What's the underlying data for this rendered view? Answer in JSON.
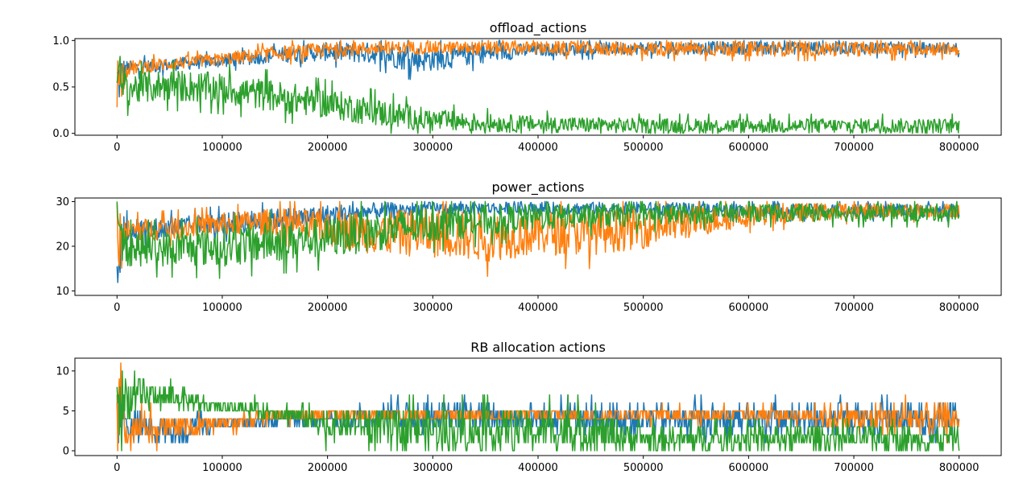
{
  "colors": {
    "series0": "#1f77b4",
    "series1": "#ff7f0e",
    "series2": "#2ca02c"
  },
  "chart_data": [
    {
      "type": "line",
      "title": "offload_actions",
      "xlabel": "",
      "ylabel": "",
      "xlim": [
        -40000,
        840000
      ],
      "ylim": [
        -0.02,
        1.02
      ],
      "xticks": [
        0,
        100000,
        200000,
        300000,
        400000,
        500000,
        600000,
        700000,
        800000
      ],
      "yticks": [
        0.0,
        0.5,
        1.0
      ],
      "ytick_labels": [
        "0.0",
        "0.5",
        "1.0"
      ],
      "grid": false,
      "series": [
        {
          "color": "#1f77b4",
          "x": [
            0,
            10000,
            50000,
            100000,
            150000,
            200000,
            250000,
            280000,
            300000,
            350000,
            400000,
            500000,
            600000,
            700000,
            800000
          ],
          "y_mean": [
            0.55,
            0.7,
            0.74,
            0.78,
            0.84,
            0.88,
            0.86,
            0.8,
            0.8,
            0.86,
            0.9,
            0.92,
            0.92,
            0.92,
            0.92
          ],
          "y_spread": [
            0.35,
            0.08,
            0.07,
            0.07,
            0.08,
            0.1,
            0.12,
            0.14,
            0.13,
            0.1,
            0.07,
            0.07,
            0.07,
            0.07,
            0.06
          ]
        },
        {
          "color": "#ff7f0e",
          "x": [
            0,
            10000,
            50000,
            100000,
            150000,
            200000,
            250000,
            300000,
            350000,
            400000,
            500000,
            600000,
            700000,
            800000
          ],
          "y_mean": [
            0.55,
            0.7,
            0.75,
            0.8,
            0.86,
            0.9,
            0.92,
            0.92,
            0.92,
            0.92,
            0.91,
            0.91,
            0.91,
            0.91
          ],
          "y_spread": [
            0.35,
            0.08,
            0.07,
            0.07,
            0.08,
            0.08,
            0.07,
            0.07,
            0.07,
            0.07,
            0.08,
            0.08,
            0.08,
            0.07
          ]
        },
        {
          "color": "#2ca02c",
          "x": [
            0,
            10000,
            50000,
            100000,
            150000,
            200000,
            250000,
            300000,
            350000,
            400000,
            500000,
            600000,
            700000,
            800000
          ],
          "y_mean": [
            0.5,
            0.48,
            0.52,
            0.48,
            0.4,
            0.32,
            0.22,
            0.14,
            0.11,
            0.1,
            0.08,
            0.08,
            0.08,
            0.08
          ],
          "y_spread": [
            0.45,
            0.18,
            0.17,
            0.17,
            0.17,
            0.16,
            0.15,
            0.12,
            0.1,
            0.09,
            0.08,
            0.08,
            0.08,
            0.08
          ]
        }
      ]
    },
    {
      "type": "line",
      "title": "power_actions",
      "xlabel": "",
      "ylabel": "",
      "xlim": [
        -40000,
        840000
      ],
      "ylim": [
        9.0,
        30.8
      ],
      "xticks": [
        0,
        100000,
        200000,
        300000,
        400000,
        500000,
        600000,
        700000,
        800000
      ],
      "yticks": [
        10,
        20,
        30
      ],
      "ytick_labels": [
        "10",
        "20",
        "30"
      ],
      "grid": false,
      "series": [
        {
          "color": "#1f77b4",
          "x": [
            0,
            10000,
            50000,
            100000,
            150000,
            200000,
            250000,
            300000,
            400000,
            500000,
            600000,
            700000,
            800000
          ],
          "y_mean": [
            20,
            23.5,
            24,
            25,
            26,
            27,
            28,
            28.5,
            28.5,
            28.5,
            28,
            28,
            28
          ],
          "y_spread": [
            10,
            2.5,
            2.5,
            2.5,
            2.5,
            2.3,
            1.8,
            1.4,
            1.4,
            1.4,
            1.5,
            1.5,
            1.5
          ]
        },
        {
          "color": "#ff7f0e",
          "x": [
            0,
            10000,
            50000,
            100000,
            150000,
            200000,
            250000,
            300000,
            350000,
            400000,
            450000,
            500000,
            550000,
            600000,
            700000,
            800000
          ],
          "y_mean": [
            20,
            23.5,
            24,
            25,
            25.5,
            24,
            23,
            23,
            22,
            23,
            23,
            24,
            25.5,
            27,
            28,
            28
          ],
          "y_spread": [
            10,
            2.5,
            2.5,
            2.5,
            3,
            4,
            5,
            5.5,
            5.5,
            5,
            5,
            4.5,
            3.5,
            2.5,
            1.8,
            1.5
          ]
        },
        {
          "color": "#2ca02c",
          "x": [
            0,
            10000,
            50000,
            100000,
            150000,
            200000,
            250000,
            300000,
            400000,
            500000,
            600000,
            700000,
            800000
          ],
          "y_mean": [
            20,
            19.5,
            19.5,
            20,
            21,
            22,
            23.5,
            25,
            26.5,
            27,
            27.5,
            27.5,
            27.5
          ],
          "y_spread": [
            10,
            4,
            4,
            4.5,
            4.5,
            4.5,
            4.5,
            4,
            3,
            2.5,
            2,
            2,
            2
          ]
        }
      ]
    },
    {
      "type": "line",
      "title": "RB allocation actions",
      "xlabel": "",
      "ylabel": "",
      "xlim": [
        -40000,
        840000
      ],
      "ylim": [
        -0.6,
        11.6
      ],
      "xticks": [
        0,
        100000,
        200000,
        300000,
        400000,
        500000,
        600000,
        700000,
        800000
      ],
      "yticks": [
        0,
        5,
        10
      ],
      "ytick_labels": [
        "0",
        "5",
        "10"
      ],
      "grid": false,
      "series": [
        {
          "color": "#1f77b4",
          "x": [
            0,
            10000,
            50000,
            65000,
            100000,
            200000,
            260000,
            300000,
            450000,
            600000,
            800000
          ],
          "y_mean": [
            5,
            3,
            2.5,
            2.5,
            3.5,
            4,
            4.5,
            4.5,
            4,
            4,
            4
          ],
          "y_spread": [
            5,
            2,
            1.5,
            1.5,
            0.6,
            0.6,
            1.5,
            1.6,
            1.8,
            1.8,
            2
          ]
        },
        {
          "color": "#ff7f0e",
          "x": [
            0,
            10000,
            50000,
            100000,
            150000,
            200000,
            300000,
            400000,
            460000,
            640000,
            740000,
            800000
          ],
          "y_mean": [
            5,
            3,
            2.8,
            3.5,
            4.5,
            4.5,
            4.5,
            4.5,
            4.5,
            4.5,
            4,
            4
          ],
          "y_spread": [
            5,
            2,
            1.5,
            0.8,
            1,
            0.5,
            0.5,
            0.5,
            0.5,
            1,
            2,
            2
          ]
        },
        {
          "color": "#2ca02c",
          "x": [
            0,
            10000,
            40000,
            80000,
            100000,
            150000,
            200000,
            300000,
            400000,
            450000,
            500000,
            700000,
            800000
          ],
          "y_mean": [
            6,
            6.5,
            7,
            6,
            5.5,
            5,
            3.5,
            2.5,
            2.5,
            2.5,
            1.5,
            1.5,
            1.5
          ],
          "y_spread": [
            5,
            2.5,
            1.5,
            1,
            0.6,
            1,
            2,
            2.5,
            2.5,
            2.5,
            1.5,
            1.5,
            1.5
          ]
        }
      ]
    }
  ]
}
